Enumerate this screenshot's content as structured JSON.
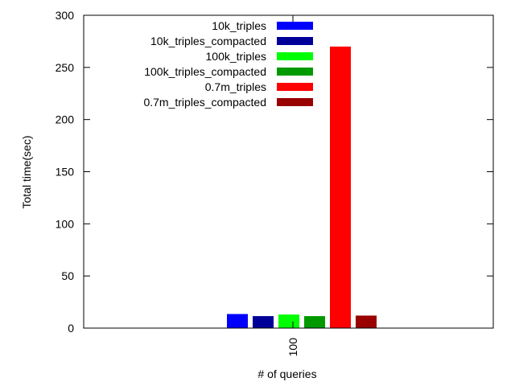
{
  "chart_data": {
    "type": "bar",
    "title": "",
    "xlabel": "# of queries",
    "ylabel": "Total time(sec)",
    "categories": [
      "100"
    ],
    "ylim": [
      0,
      300
    ],
    "yticks": [
      0,
      50,
      100,
      150,
      200,
      250,
      300
    ],
    "grid": false,
    "legend_position": "top-right",
    "series": [
      {
        "name": "10k_triples",
        "values": [
          13.5
        ],
        "color": "#0000ff"
      },
      {
        "name": "10k_triples_compacted",
        "values": [
          11.5
        ],
        "color": "#000099"
      },
      {
        "name": "100k_triples",
        "values": [
          13
        ],
        "color": "#00ff00"
      },
      {
        "name": "100k_triples_compacted",
        "values": [
          11.5
        ],
        "color": "#009900"
      },
      {
        "name": "0.7m_triples",
        "values": [
          270
        ],
        "color": "#ff0000"
      },
      {
        "name": "0.7m_triples_compacted",
        "values": [
          12
        ],
        "color": "#990000"
      }
    ]
  }
}
